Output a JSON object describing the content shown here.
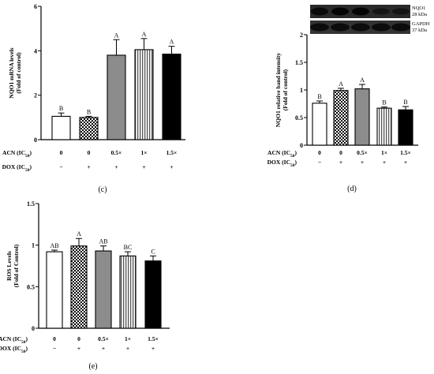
{
  "chart_data": [
    {
      "type": "bar",
      "panel_label": "(c)",
      "ylabel": "NQO1 mRNA levels",
      "ylabel2": "(Fold of control)",
      "ylim": [
        0,
        6
      ],
      "yticks": [
        0,
        2,
        4,
        6
      ],
      "values": [
        1.05,
        1.0,
        3.8,
        4.05,
        3.85
      ],
      "errors": [
        0.15,
        0.05,
        0.7,
        0.5,
        0.35
      ],
      "letters": [
        "B",
        "B",
        "A",
        "A",
        "A"
      ],
      "row_labels": [
        "ACN (IC",
        "DOX (IC"
      ],
      "row_sub": "50",
      "acn": [
        "0",
        "0",
        "0.5×",
        "1×",
        "1.5×"
      ],
      "dox": [
        "−",
        "+",
        "+",
        "+",
        "+"
      ]
    },
    {
      "type": "bar",
      "panel_label": "(d)",
      "ylabel": "NQO1 relative band intensity",
      "ylabel2": "(Fold of control)",
      "ylim": [
        0,
        2
      ],
      "yticks": [
        0,
        0.5,
        1,
        1.5,
        2
      ],
      "values": [
        0.76,
        0.99,
        1.02,
        0.67,
        0.64
      ],
      "errors": [
        0.04,
        0.04,
        0.08,
        0.02,
        0.06
      ],
      "letters": [
        "B",
        "A",
        "A",
        "B",
        "B"
      ],
      "row_labels": [
        "ACN (IC",
        "DOX (IC"
      ],
      "row_sub": "50",
      "acn": [
        "0",
        "0",
        "0.5×",
        "1×",
        "1.5×"
      ],
      "dox": [
        "−",
        "+",
        "+",
        "+",
        "+"
      ],
      "blot_labels": [
        "NQO1",
        "28 kDa",
        "GAPDH",
        "37 kDa"
      ]
    },
    {
      "type": "bar",
      "panel_label": "(e)",
      "ylabel": "ROS Levels",
      "ylabel2": "(Fold of Control)",
      "ylim": [
        0,
        1.5
      ],
      "yticks": [
        0,
        0.5,
        1,
        1.5
      ],
      "values": [
        0.92,
        0.99,
        0.93,
        0.87,
        0.81
      ],
      "errors": [
        0.02,
        0.09,
        0.06,
        0.05,
        0.06
      ],
      "letters": [
        "AB",
        "A",
        "AB",
        "BC",
        "C"
      ],
      "row_labels": [
        "ACN (IC",
        "DOX (IC"
      ],
      "row_sub": "50",
      "acn": [
        "0",
        "0",
        "0.5×",
        "1×",
        "1.5×"
      ],
      "dox": [
        "−",
        "+",
        "+",
        "+",
        "+"
      ]
    }
  ],
  "colors": {
    "bar1": "#ffffff",
    "bar2": "checkered",
    "bar3": "#8c8c8c",
    "bar4": "vertical-stripes",
    "bar5": "#000000"
  }
}
